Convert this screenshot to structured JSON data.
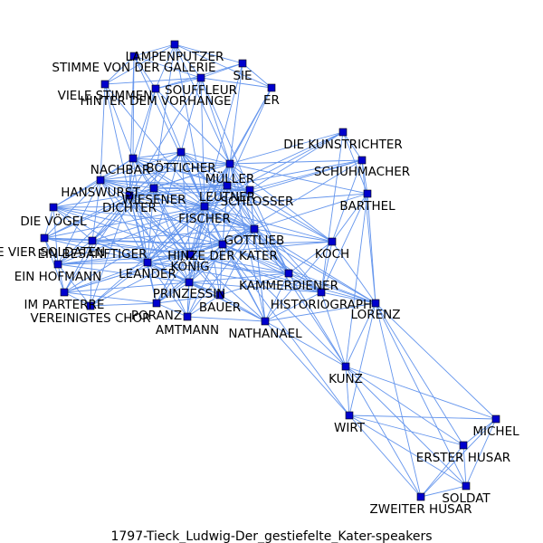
{
  "caption": "1797-Tieck_Ludwig-Der_gestiefelte_Kater-speakers",
  "colors": {
    "edge": "#6495ED",
    "node_fill": "#0000CD",
    "node_stroke": "#000000",
    "label": "#000000"
  },
  "nodes": [
    {
      "id": "LAMPENPUTZER",
      "label": "LAMPENPUTZER"
    },
    {
      "id": "STIMME_VON_DER_GALERIE",
      "label": "STIMME VON DER GALERIE"
    },
    {
      "id": "SIE",
      "label": "SIE"
    },
    {
      "id": "VIELE_STIMMEN",
      "label": "VIELE STIMMEN"
    },
    {
      "id": "SOUFFLEUR",
      "label": "SOUFFLEUR"
    },
    {
      "id": "HINTER_DEM_VORHANGE",
      "label": "HINTER DEM VORHANGE"
    },
    {
      "id": "ER",
      "label": "ER"
    },
    {
      "id": "DIE_KUNSTRICHTER",
      "label": "DIE KUNSTRICHTER"
    },
    {
      "id": "SCHUHMACHER",
      "label": "SCHUHMACHER"
    },
    {
      "id": "NACHBAR",
      "label": "NACHBAR"
    },
    {
      "id": "BOETTICHER",
      "label": "BÖTTICHER"
    },
    {
      "id": "MUELLER",
      "label": "MÜLLER"
    },
    {
      "id": "HANSWURST",
      "label": "HANSWURST"
    },
    {
      "id": "WIESENER",
      "label": "WIESENER"
    },
    {
      "id": "LEUTNER",
      "label": "LEUTNER"
    },
    {
      "id": "SCHLOSSER",
      "label": "SCHLOSSER"
    },
    {
      "id": "BARTHEL",
      "label": "BARTHEL"
    },
    {
      "id": "DICHTER",
      "label": "DICHTER"
    },
    {
      "id": "FISCHER",
      "label": "FISCHER"
    },
    {
      "id": "DIE_VOEGEL",
      "label": "DIE VÖGEL"
    },
    {
      "id": "GOTTLIEB",
      "label": "GOTTLIEB"
    },
    {
      "id": "DIE_VIER_SOLDATEN",
      "label": "DIE VIER SOLDATEN"
    },
    {
      "id": "EIN_BESANFTIGER",
      "label": "EIN BESÄNFTIGER"
    },
    {
      "id": "HINZE_DER_KATER",
      "label": "HINZE DER KATER"
    },
    {
      "id": "KOCH",
      "label": "KOCH"
    },
    {
      "id": "KOENIG",
      "label": "KÖNIG"
    },
    {
      "id": "EIN_HOFMANN",
      "label": "EIN HOFMANN"
    },
    {
      "id": "LEANDER",
      "label": "LEANDER"
    },
    {
      "id": "KAMMERDIENER",
      "label": "KAMMERDIENER"
    },
    {
      "id": "PRINZESSIN",
      "label": "PRINZESSIN"
    },
    {
      "id": "IM_PARTERRE",
      "label": "IM PARTERRE"
    },
    {
      "id": "HISTORIOGRAPH",
      "label": "HISTORIOGRAPH"
    },
    {
      "id": "BAUER",
      "label": "BAUER"
    },
    {
      "id": "LORENZ",
      "label": "LORENZ"
    },
    {
      "id": "PORANZ",
      "label": "PORANZ"
    },
    {
      "id": "VEREINIGTES_CHOR",
      "label": "VEREINIGTES CHOR"
    },
    {
      "id": "AMTMANN",
      "label": "AMTMANN"
    },
    {
      "id": "NATHANAEL",
      "label": "NATHANAEL"
    },
    {
      "id": "KUNZ",
      "label": "KUNZ"
    },
    {
      "id": "WIRT",
      "label": "WIRT"
    },
    {
      "id": "MICHEL",
      "label": "MICHEL"
    },
    {
      "id": "ERSTER_HUSAR",
      "label": "ERSTER HUSAR"
    },
    {
      "id": "SOLDAT",
      "label": "SOLDAT"
    },
    {
      "id": "ZWEITER_HUSAR",
      "label": "ZWEITER HUSAR"
    }
  ],
  "edges": [
    [
      "LAMPENPUTZER",
      "STIMME_VON_DER_GALERIE"
    ],
    [
      "LAMPENPUTZER",
      "SIE"
    ],
    [
      "LAMPENPUTZER",
      "VIELE_STIMMEN"
    ],
    [
      "LAMPENPUTZER",
      "SOUFFLEUR"
    ],
    [
      "LAMPENPUTZER",
      "HINTER_DEM_VORHANGE"
    ],
    [
      "LAMPENPUTZER",
      "ER"
    ],
    [
      "LAMPENPUTZER",
      "FISCHER"
    ],
    [
      "LAMPENPUTZER",
      "MUELLER"
    ],
    [
      "LAMPENPUTZER",
      "WIESENER"
    ],
    [
      "STIMME_VON_DER_GALERIE",
      "VIELE_STIMMEN"
    ],
    [
      "STIMME_VON_DER_GALERIE",
      "SOUFFLEUR"
    ],
    [
      "STIMME_VON_DER_GALERIE",
      "HINTER_DEM_VORHANGE"
    ],
    [
      "STIMME_VON_DER_GALERIE",
      "FISCHER"
    ],
    [
      "STIMME_VON_DER_GALERIE",
      "DICHTER"
    ],
    [
      "STIMME_VON_DER_GALERIE",
      "NACHBAR"
    ],
    [
      "SIE",
      "ER"
    ],
    [
      "SIE",
      "SOUFFLEUR"
    ],
    [
      "SIE",
      "MUELLER"
    ],
    [
      "SIE",
      "FISCHER"
    ],
    [
      "SIE",
      "HINTER_DEM_VORHANGE"
    ],
    [
      "ER",
      "MUELLER"
    ],
    [
      "ER",
      "FISCHER"
    ],
    [
      "ER",
      "LEUTNER"
    ],
    [
      "ER",
      "SOUFFLEUR"
    ],
    [
      "VIELE_STIMMEN",
      "SOUFFLEUR"
    ],
    [
      "VIELE_STIMMEN",
      "FISCHER"
    ],
    [
      "VIELE_STIMMEN",
      "DICHTER"
    ],
    [
      "VIELE_STIMMEN",
      "NACHBAR"
    ],
    [
      "VIELE_STIMMEN",
      "HANSWURST"
    ],
    [
      "SOUFFLEUR",
      "HINTER_DEM_VORHANGE"
    ],
    [
      "SOUFFLEUR",
      "FISCHER"
    ],
    [
      "SOUFFLEUR",
      "DICHTER"
    ],
    [
      "SOUFFLEUR",
      "MUELLER"
    ],
    [
      "SOUFFLEUR",
      "BOETTICHER"
    ],
    [
      "SOUFFLEUR",
      "SCHLOSSER"
    ],
    [
      "HINTER_DEM_VORHANGE",
      "FISCHER"
    ],
    [
      "HINTER_DEM_VORHANGE",
      "DICHTER"
    ],
    [
      "HINTER_DEM_VORHANGE",
      "MUELLER"
    ],
    [
      "HINTER_DEM_VORHANGE",
      "NACHBAR"
    ],
    [
      "DIE_KUNSTRICHTER",
      "SCHUHMACHER"
    ],
    [
      "DIE_KUNSTRICHTER",
      "FISCHER"
    ],
    [
      "DIE_KUNSTRICHTER",
      "MUELLER"
    ],
    [
      "DIE_KUNSTRICHTER",
      "LEUTNER"
    ],
    [
      "DIE_KUNSTRICHTER",
      "SCHLOSSER"
    ],
    [
      "DIE_KUNSTRICHTER",
      "BARTHEL"
    ],
    [
      "DIE_KUNSTRICHTER",
      "HISTORIOGRAPH"
    ],
    [
      "SCHUHMACHER",
      "BARTHEL"
    ],
    [
      "SCHUHMACHER",
      "FISCHER"
    ],
    [
      "SCHUHMACHER",
      "MUELLER"
    ],
    [
      "SCHUHMACHER",
      "LEUTNER"
    ],
    [
      "SCHUHMACHER",
      "SCHLOSSER"
    ],
    [
      "SCHUHMACHER",
      "KOCH"
    ],
    [
      "SCHUHMACHER",
      "LORENZ"
    ],
    [
      "SCHUHMACHER",
      "HINZE_DER_KATER"
    ],
    [
      "BARTHEL",
      "LORENZ"
    ],
    [
      "BARTHEL",
      "KUNZ"
    ],
    [
      "BARTHEL",
      "FISCHER"
    ],
    [
      "BARTHEL",
      "GOTTLIEB"
    ],
    [
      "BARTHEL",
      "KOCH"
    ],
    [
      "BARTHEL",
      "MUELLER"
    ],
    [
      "BARTHEL",
      "HISTORIOGRAPH"
    ],
    [
      "NACHBAR",
      "BOETTICHER"
    ],
    [
      "NACHBAR",
      "MUELLER"
    ],
    [
      "NACHBAR",
      "HANSWURST"
    ],
    [
      "NACHBAR",
      "WIESENER"
    ],
    [
      "NACHBAR",
      "LEUTNER"
    ],
    [
      "NACHBAR",
      "SCHLOSSER"
    ],
    [
      "NACHBAR",
      "DICHTER"
    ],
    [
      "NACHBAR",
      "FISCHER"
    ],
    [
      "NACHBAR",
      "GOTTLIEB"
    ],
    [
      "NACHBAR",
      "DIE_VOEGEL"
    ],
    [
      "NACHBAR",
      "HINZE_DER_KATER"
    ],
    [
      "NACHBAR",
      "KOENIG"
    ],
    [
      "NACHBAR",
      "LEANDER"
    ],
    [
      "BOETTICHER",
      "MUELLER"
    ],
    [
      "BOETTICHER",
      "HANSWURST"
    ],
    [
      "BOETTICHER",
      "WIESENER"
    ],
    [
      "BOETTICHER",
      "LEUTNER"
    ],
    [
      "BOETTICHER",
      "SCHLOSSER"
    ],
    [
      "BOETTICHER",
      "DICHTER"
    ],
    [
      "BOETTICHER",
      "FISCHER"
    ],
    [
      "BOETTICHER",
      "GOTTLIEB"
    ],
    [
      "BOETTICHER",
      "HINZE_DER_KATER"
    ],
    [
      "BOETTICHER",
      "KOENIG"
    ],
    [
      "BOETTICHER",
      "LEANDER"
    ],
    [
      "BOETTICHER",
      "EIN_BESANFTIGER"
    ],
    [
      "BOETTICHER",
      "KAMMERDIENER"
    ],
    [
      "MUELLER",
      "HANSWURST"
    ],
    [
      "MUELLER",
      "WIESENER"
    ],
    [
      "MUELLER",
      "LEUTNER"
    ],
    [
      "MUELLER",
      "SCHLOSSER"
    ],
    [
      "MUELLER",
      "DICHTER"
    ],
    [
      "MUELLER",
      "FISCHER"
    ],
    [
      "MUELLER",
      "GOTTLIEB"
    ],
    [
      "MUELLER",
      "HINZE_DER_KATER"
    ],
    [
      "MUELLER",
      "KOENIG"
    ],
    [
      "MUELLER",
      "LEANDER"
    ],
    [
      "MUELLER",
      "KOCH"
    ],
    [
      "MUELLER",
      "KAMMERDIENER"
    ],
    [
      "MUELLER",
      "PRINZESSIN"
    ],
    [
      "MUELLER",
      "NATHANAEL"
    ],
    [
      "HANSWURST",
      "WIESENER"
    ],
    [
      "HANSWURST",
      "LEUTNER"
    ],
    [
      "HANSWURST",
      "SCHLOSSER"
    ],
    [
      "HANSWURST",
      "DICHTER"
    ],
    [
      "HANSWURST",
      "FISCHER"
    ],
    [
      "HANSWURST",
      "GOTTLIEB"
    ],
    [
      "HANSWURST",
      "DIE_VOEGEL"
    ],
    [
      "HANSWURST",
      "DIE_VIER_SOLDATEN"
    ],
    [
      "HANSWURST",
      "EIN_BESANFTIGER"
    ],
    [
      "HANSWURST",
      "HINZE_DER_KATER"
    ],
    [
      "HANSWURST",
      "KOENIG"
    ],
    [
      "HANSWURST",
      "LEANDER"
    ],
    [
      "HANSWURST",
      "EIN_HOFMANN"
    ],
    [
      "HANSWURST",
      "PRINZESSIN"
    ],
    [
      "WIESENER",
      "LEUTNER"
    ],
    [
      "WIESENER",
      "SCHLOSSER"
    ],
    [
      "WIESENER",
      "DICHTER"
    ],
    [
      "WIESENER",
      "FISCHER"
    ],
    [
      "WIESENER",
      "GOTTLIEB"
    ],
    [
      "WIESENER",
      "HINZE_DER_KATER"
    ],
    [
      "WIESENER",
      "KOENIG"
    ],
    [
      "WIESENER",
      "LEANDER"
    ],
    [
      "WIESENER",
      "EIN_BESANFTIGER"
    ],
    [
      "WIESENER",
      "DIE_VIER_SOLDATEN"
    ],
    [
      "WIESENER",
      "PRINZESSIN"
    ],
    [
      "LEUTNER",
      "SCHLOSSER"
    ],
    [
      "LEUTNER",
      "DICHTER"
    ],
    [
      "LEUTNER",
      "FISCHER"
    ],
    [
      "LEUTNER",
      "GOTTLIEB"
    ],
    [
      "LEUTNER",
      "HINZE_DER_KATER"
    ],
    [
      "LEUTNER",
      "KOENIG"
    ],
    [
      "LEUTNER",
      "LEANDER"
    ],
    [
      "LEUTNER",
      "KOCH"
    ],
    [
      "LEUTNER",
      "KAMMERDIENER"
    ],
    [
      "LEUTNER",
      "HISTORIOGRAPH"
    ],
    [
      "SCHLOSSER",
      "DICHTER"
    ],
    [
      "SCHLOSSER",
      "FISCHER"
    ],
    [
      "SCHLOSSER",
      "GOTTLIEB"
    ],
    [
      "SCHLOSSER",
      "HINZE_DER_KATER"
    ],
    [
      "SCHLOSSER",
      "KOENIG"
    ],
    [
      "SCHLOSSER",
      "LEANDER"
    ],
    [
      "SCHLOSSER",
      "KOCH"
    ],
    [
      "SCHLOSSER",
      "KAMMERDIENER"
    ],
    [
      "SCHLOSSER",
      "NATHANAEL"
    ],
    [
      "DICHTER",
      "FISCHER"
    ],
    [
      "DICHTER",
      "GOTTLIEB"
    ],
    [
      "DICHTER",
      "DIE_VOEGEL"
    ],
    [
      "DICHTER",
      "DIE_VIER_SOLDATEN"
    ],
    [
      "DICHTER",
      "EIN_BESANFTIGER"
    ],
    [
      "DICHTER",
      "HINZE_DER_KATER"
    ],
    [
      "DICHTER",
      "KOENIG"
    ],
    [
      "DICHTER",
      "EIN_HOFMANN"
    ],
    [
      "DICHTER",
      "LEANDER"
    ],
    [
      "DICHTER",
      "PRINZESSIN"
    ],
    [
      "DICHTER",
      "IM_PARTERRE"
    ],
    [
      "DICHTER",
      "VEREINIGTES_CHOR"
    ],
    [
      "DICHTER",
      "PORANZ"
    ],
    [
      "DICHTER",
      "AMTMANN"
    ],
    [
      "DICHTER",
      "BAUER"
    ],
    [
      "FISCHER",
      "GOTTLIEB"
    ],
    [
      "FISCHER",
      "DIE_VOEGEL"
    ],
    [
      "FISCHER",
      "DIE_VIER_SOLDATEN"
    ],
    [
      "FISCHER",
      "EIN_BESANFTIGER"
    ],
    [
      "FISCHER",
      "HINZE_DER_KATER"
    ],
    [
      "FISCHER",
      "KOENIG"
    ],
    [
      "FISCHER",
      "EIN_HOFMANN"
    ],
    [
      "FISCHER",
      "LEANDER"
    ],
    [
      "FISCHER",
      "KAMMERDIENER"
    ],
    [
      "FISCHER",
      "PRINZESSIN"
    ],
    [
      "FISCHER",
      "IM_PARTERRE"
    ],
    [
      "FISCHER",
      "VEREINIGTES_CHOR"
    ],
    [
      "FISCHER",
      "PORANZ"
    ],
    [
      "FISCHER",
      "AMTMANN"
    ],
    [
      "FISCHER",
      "BAUER"
    ],
    [
      "FISCHER",
      "KOCH"
    ],
    [
      "FISCHER",
      "HISTORIOGRAPH"
    ],
    [
      "FISCHER",
      "NATHANAEL"
    ],
    [
      "FISCHER",
      "LORENZ"
    ],
    [
      "DIE_VOEGEL",
      "GOTTLIEB"
    ],
    [
      "DIE_VOEGEL",
      "DIE_VIER_SOLDATEN"
    ],
    [
      "DIE_VOEGEL",
      "EIN_BESANFTIGER"
    ],
    [
      "DIE_VOEGEL",
      "HINZE_DER_KATER"
    ],
    [
      "DIE_VOEGEL",
      "KOENIG"
    ],
    [
      "DIE_VOEGEL",
      "LEANDER"
    ],
    [
      "DIE_VOEGEL",
      "EIN_HOFMANN"
    ],
    [
      "GOTTLIEB",
      "HINZE_DER_KATER"
    ],
    [
      "GOTTLIEB",
      "KOENIG"
    ],
    [
      "GOTTLIEB",
      "LEANDER"
    ],
    [
      "GOTTLIEB",
      "KOCH"
    ],
    [
      "GOTTLIEB",
      "KAMMERDIENER"
    ],
    [
      "GOTTLIEB",
      "PRINZESSIN"
    ],
    [
      "GOTTLIEB",
      "HISTORIOGRAPH"
    ],
    [
      "GOTTLIEB",
      "BAUER"
    ],
    [
      "GOTTLIEB",
      "NATHANAEL"
    ],
    [
      "GOTTLIEB",
      "LORENZ"
    ],
    [
      "GOTTLIEB",
      "KUNZ"
    ],
    [
      "GOTTLIEB",
      "AMTMANN"
    ],
    [
      "GOTTLIEB",
      "PORANZ"
    ],
    [
      "GOTTLIEB",
      "EIN_BESANFTIGER"
    ],
    [
      "DIE_VIER_SOLDATEN",
      "EIN_BESANFTIGER"
    ],
    [
      "DIE_VIER_SOLDATEN",
      "HINZE_DER_KATER"
    ],
    [
      "DIE_VIER_SOLDATEN",
      "KOENIG"
    ],
    [
      "DIE_VIER_SOLDATEN",
      "EIN_HOFMANN"
    ],
    [
      "DIE_VIER_SOLDATEN",
      "LEANDER"
    ],
    [
      "DIE_VIER_SOLDATEN",
      "IM_PARTERRE"
    ],
    [
      "EIN_BESANFTIGER",
      "HINZE_DER_KATER"
    ],
    [
      "EIN_BESANFTIGER",
      "KOENIG"
    ],
    [
      "EIN_BESANFTIGER",
      "EIN_HOFMANN"
    ],
    [
      "EIN_BESANFTIGER",
      "LEANDER"
    ],
    [
      "EIN_BESANFTIGER",
      "IM_PARTERRE"
    ],
    [
      "EIN_BESANFTIGER",
      "VEREINIGTES_CHOR"
    ],
    [
      "EIN_BESANFTIGER",
      "PRINZESSIN"
    ],
    [
      "HINZE_DER_KATER",
      "KOENIG"
    ],
    [
      "HINZE_DER_KATER",
      "LEANDER"
    ],
    [
      "HINZE_DER_KATER",
      "KOCH"
    ],
    [
      "HINZE_DER_KATER",
      "KAMMERDIENER"
    ],
    [
      "HINZE_DER_KATER",
      "PRINZESSIN"
    ],
    [
      "HINZE_DER_KATER",
      "HISTORIOGRAPH"
    ],
    [
      "HINZE_DER_KATER",
      "BAUER"
    ],
    [
      "HINZE_DER_KATER",
      "NATHANAEL"
    ],
    [
      "HINZE_DER_KATER",
      "LORENZ"
    ],
    [
      "HINZE_DER_KATER",
      "KUNZ"
    ],
    [
      "HINZE_DER_KATER",
      "WIRT"
    ],
    [
      "HINZE_DER_KATER",
      "AMTMANN"
    ],
    [
      "HINZE_DER_KATER",
      "PORANZ"
    ],
    [
      "HINZE_DER_KATER",
      "EIN_HOFMANN"
    ],
    [
      "HINZE_DER_KATER",
      "IM_PARTERRE"
    ],
    [
      "KOCH",
      "KAMMERDIENER"
    ],
    [
      "KOCH",
      "KOENIG"
    ],
    [
      "KOCH",
      "HISTORIOGRAPH"
    ],
    [
      "KOCH",
      "LORENZ"
    ],
    [
      "KOCH",
      "NATHANAEL"
    ],
    [
      "KOENIG",
      "LEANDER"
    ],
    [
      "KOENIG",
      "EIN_HOFMANN"
    ],
    [
      "KOENIG",
      "KAMMERDIENER"
    ],
    [
      "KOENIG",
      "PRINZESSIN"
    ],
    [
      "KOENIG",
      "IM_PARTERRE"
    ],
    [
      "KOENIG",
      "HISTORIOGRAPH"
    ],
    [
      "KOENIG",
      "BAUER"
    ],
    [
      "KOENIG",
      "PORANZ"
    ],
    [
      "KOENIG",
      "VEREINIGTES_CHOR"
    ],
    [
      "KOENIG",
      "AMTMANN"
    ],
    [
      "KOENIG",
      "NATHANAEL"
    ],
    [
      "KOENIG",
      "LORENZ"
    ],
    [
      "EIN_HOFMANN",
      "LEANDER"
    ],
    [
      "EIN_HOFMANN",
      "IM_PARTERRE"
    ],
    [
      "EIN_HOFMANN",
      "VEREINIGTES_CHOR"
    ],
    [
      "EIN_HOFMANN",
      "PRINZESSIN"
    ],
    [
      "LEANDER",
      "KAMMERDIENER"
    ],
    [
      "LEANDER",
      "PRINZESSIN"
    ],
    [
      "LEANDER",
      "IM_PARTERRE"
    ],
    [
      "LEANDER",
      "PORANZ"
    ],
    [
      "LEANDER",
      "VEREINIGTES_CHOR"
    ],
    [
      "LEANDER",
      "AMTMANN"
    ],
    [
      "LEANDER",
      "BAUER"
    ],
    [
      "LEANDER",
      "HISTORIOGRAPH"
    ],
    [
      "LEANDER",
      "NATHANAEL"
    ],
    [
      "KAMMERDIENER",
      "PRINZESSIN"
    ],
    [
      "KAMMERDIENER",
      "HISTORIOGRAPH"
    ],
    [
      "KAMMERDIENER",
      "NATHANAEL"
    ],
    [
      "KAMMERDIENER",
      "LORENZ"
    ],
    [
      "KAMMERDIENER",
      "BAUER"
    ],
    [
      "KAMMERDIENER",
      "KUNZ"
    ],
    [
      "PRINZESSIN",
      "PORANZ"
    ],
    [
      "PRINZESSIN",
      "BAUER"
    ],
    [
      "PRINZESSIN",
      "AMTMANN"
    ],
    [
      "PRINZESSIN",
      "NATHANAEL"
    ],
    [
      "PRINZESSIN",
      "HISTORIOGRAPH"
    ],
    [
      "PRINZESSIN",
      "IM_PARTERRE"
    ],
    [
      "IM_PARTERRE",
      "VEREINIGTES_CHOR"
    ],
    [
      "IM_PARTERRE",
      "PORANZ"
    ],
    [
      "HISTORIOGRAPH",
      "LORENZ"
    ],
    [
      "HISTORIOGRAPH",
      "NATHANAEL"
    ],
    [
      "HISTORIOGRAPH",
      "KUNZ"
    ],
    [
      "BAUER",
      "AMTMANN"
    ],
    [
      "BAUER",
      "NATHANAEL"
    ],
    [
      "BAUER",
      "PORANZ"
    ],
    [
      "PORANZ",
      "AMTMANN"
    ],
    [
      "PORANZ",
      "VEREINIGTES_CHOR"
    ],
    [
      "NATHANAEL",
      "LORENZ"
    ],
    [
      "NATHANAEL",
      "KUNZ"
    ],
    [
      "NATHANAEL",
      "WIRT"
    ],
    [
      "NATHANAEL",
      "AMTMANN"
    ],
    [
      "LORENZ",
      "KUNZ"
    ],
    [
      "LORENZ",
      "WIRT"
    ],
    [
      "LORENZ",
      "MICHEL"
    ],
    [
      "LORENZ",
      "ERSTER_HUSAR"
    ],
    [
      "LORENZ",
      "SOLDAT"
    ],
    [
      "LORENZ",
      "ZWEITER_HUSAR"
    ],
    [
      "KUNZ",
      "WIRT"
    ],
    [
      "KUNZ",
      "MICHEL"
    ],
    [
      "KUNZ",
      "ERSTER_HUSAR"
    ],
    [
      "KUNZ",
      "SOLDAT"
    ],
    [
      "KUNZ",
      "ZWEITER_HUSAR"
    ],
    [
      "WIRT",
      "MICHEL"
    ],
    [
      "WIRT",
      "ERSTER_HUSAR"
    ],
    [
      "WIRT",
      "SOLDAT"
    ],
    [
      "WIRT",
      "ZWEITER_HUSAR"
    ],
    [
      "MICHEL",
      "ERSTER_HUSAR"
    ],
    [
      "MICHEL",
      "SOLDAT"
    ],
    [
      "MICHEL",
      "ZWEITER_HUSAR"
    ],
    [
      "ERSTER_HUSAR",
      "SOLDAT"
    ],
    [
      "ERSTER_HUSAR",
      "ZWEITER_HUSAR"
    ],
    [
      "SOLDAT",
      "ZWEITER_HUSAR"
    ]
  ]
}
